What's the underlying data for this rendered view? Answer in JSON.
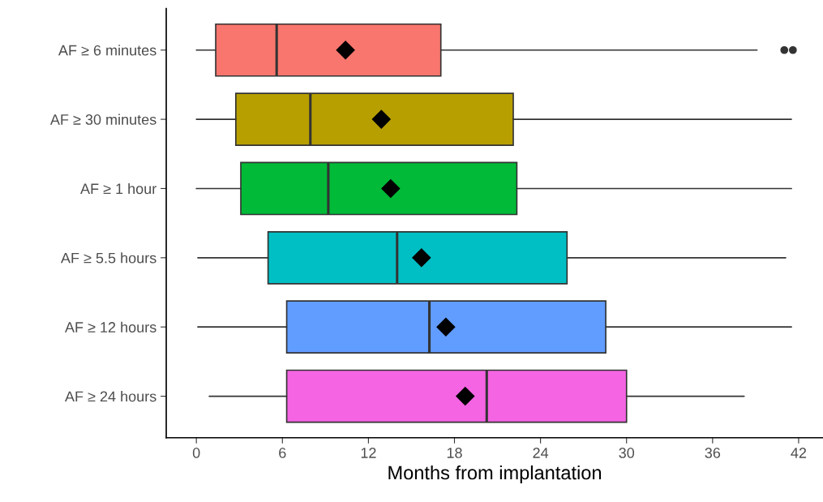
{
  "chart_data": {
    "type": "box",
    "xlabel": "Months from implantation",
    "orientation": "horizontal",
    "categories": [
      "AF ≥ 6 minutes",
      "AF ≥ 30 minutes",
      "AF ≥ 1 hour",
      "AF ≥ 5.5 hours",
      "AF ≥ 12 hours",
      "AF ≥ 24 hours"
    ],
    "colors": [
      "#f8766d",
      "#b79f00",
      "#00ba38",
      "#00bfc4",
      "#619cff",
      "#f564e3"
    ],
    "boxes": [
      {
        "low": 0,
        "q1": 1.35,
        "median": 5.6,
        "q3": 17.05,
        "high": 39.1,
        "mean": 10.4,
        "outliers": [
          41.0,
          41.6
        ]
      },
      {
        "low": 0,
        "q1": 2.75,
        "median": 7.95,
        "q3": 22.1,
        "high": 41.5,
        "mean": 12.9
      },
      {
        "low": 0,
        "q1": 3.1,
        "median": 9.2,
        "q3": 22.35,
        "high": 41.5,
        "mean": 13.55
      },
      {
        "low": 0.1,
        "q1": 5.0,
        "median": 14.0,
        "q3": 25.85,
        "high": 41.1,
        "mean": 15.7
      },
      {
        "low": 0.1,
        "q1": 6.3,
        "median": 16.25,
        "q3": 28.55,
        "high": 41.5,
        "mean": 17.4
      },
      {
        "low": 0.9,
        "q1": 6.3,
        "median": 20.25,
        "q3": 30.0,
        "high": 38.2,
        "mean": 18.75
      }
    ],
    "xlim": [
      -2.1,
      43.7
    ],
    "xticks": [
      0,
      6,
      12,
      18,
      24,
      30,
      36,
      42
    ],
    "grid": false,
    "legend": false
  }
}
